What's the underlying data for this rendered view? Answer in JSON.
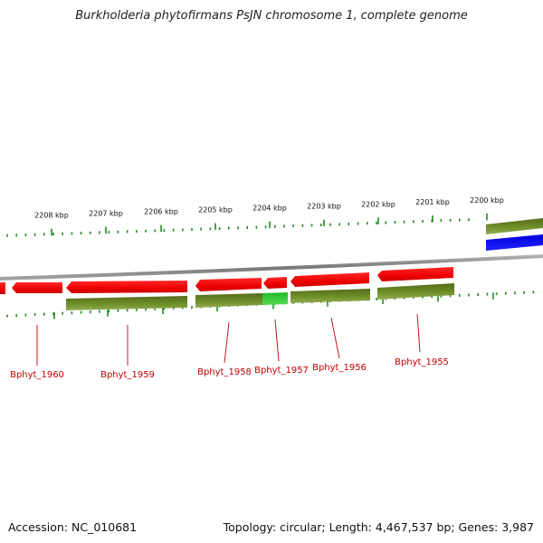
{
  "title": "Burkholderia phytofirmans PsJN chromosome 1, complete genome",
  "footer": {
    "accession": "Accession: NC_010681",
    "topology": "Topology: circular; Length: 4,467,537 bp; Genes: 3,987"
  },
  "colors": {
    "cds_red": "#ee1111",
    "gene_olive": "#6b8e23",
    "gene_highlight": "#33cc33",
    "feature_blue": "#0000ee",
    "backbone": "#888888",
    "tick_green": "#228b22",
    "label_red": "#c00000"
  },
  "scale_ticks": [
    {
      "label": "2208 kbp"
    },
    {
      "label": "2207 kbp"
    },
    {
      "label": "2206 kbp"
    },
    {
      "label": "2205 kbp"
    },
    {
      "label": "2204 kbp"
    },
    {
      "label": "2203 kbp"
    },
    {
      "label": "2202 kbp"
    },
    {
      "label": "2201 kbp"
    },
    {
      "label": "2200 kbp"
    }
  ],
  "gene_labels": [
    "Bphyt_1960",
    "Bphyt_1959",
    "Bphyt_1958",
    "Bphyt_1957",
    "Bphyt_1956",
    "Bphyt_1955"
  ]
}
